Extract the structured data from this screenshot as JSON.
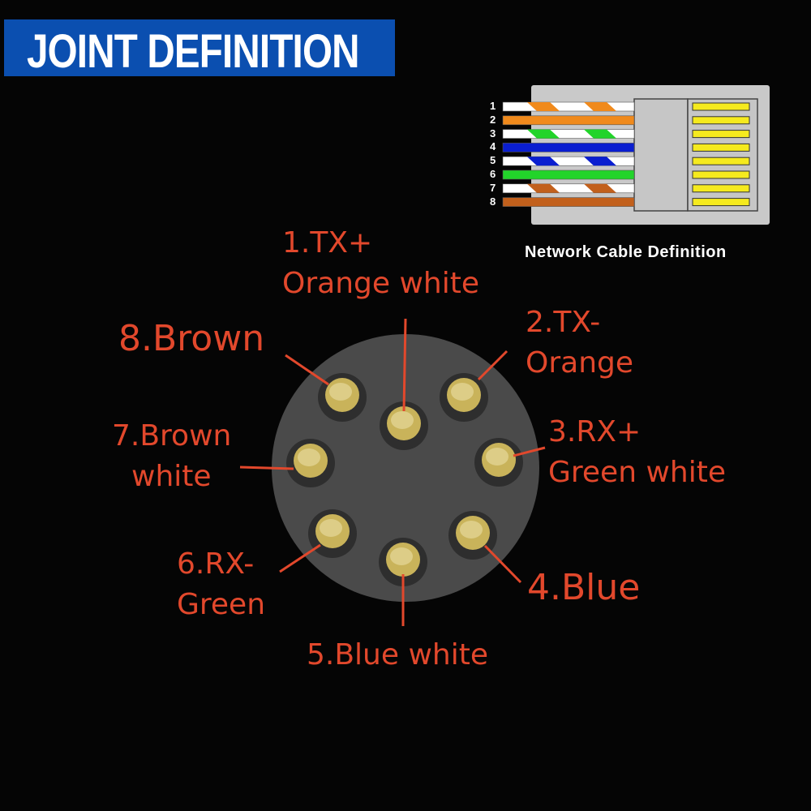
{
  "title": "JOINT DEFINITION",
  "rj45": {
    "caption": "Network Cable Definition",
    "pin_numbers": [
      "1",
      "2",
      "3",
      "4",
      "5",
      "6",
      "7",
      "8"
    ],
    "wire_colors": [
      {
        "base": "#ffffff",
        "stripe": "#f08a1c"
      },
      {
        "base": "#f08a1c",
        "stripe": null
      },
      {
        "base": "#ffffff",
        "stripe": "#22d42a"
      },
      {
        "base": "#0a1ed0",
        "stripe": null
      },
      {
        "base": "#ffffff",
        "stripe": "#0a1ed0"
      },
      {
        "base": "#22d42a",
        "stripe": null
      },
      {
        "base": "#ffffff",
        "stripe": "#c2601c"
      },
      {
        "base": "#c2601c",
        "stripe": null
      }
    ],
    "contact_color": "#f5ea1e"
  },
  "connector": {
    "label_color": "#e2482c",
    "pins": [
      {
        "line1": "1.TX+",
        "line2": "Orange white"
      },
      {
        "line1": "2.TX-",
        "line2": "Orange"
      },
      {
        "line1": "3.RX+",
        "line2": "Green white"
      },
      {
        "line1": "4.Blue",
        "line2": ""
      },
      {
        "line1": "5.Blue white",
        "line2": ""
      },
      {
        "line1": "6.RX-",
        "line2": "Green"
      },
      {
        "line1": "7.Brown",
        "line2": "white"
      },
      {
        "line1": "8.Brown",
        "line2": ""
      }
    ]
  }
}
